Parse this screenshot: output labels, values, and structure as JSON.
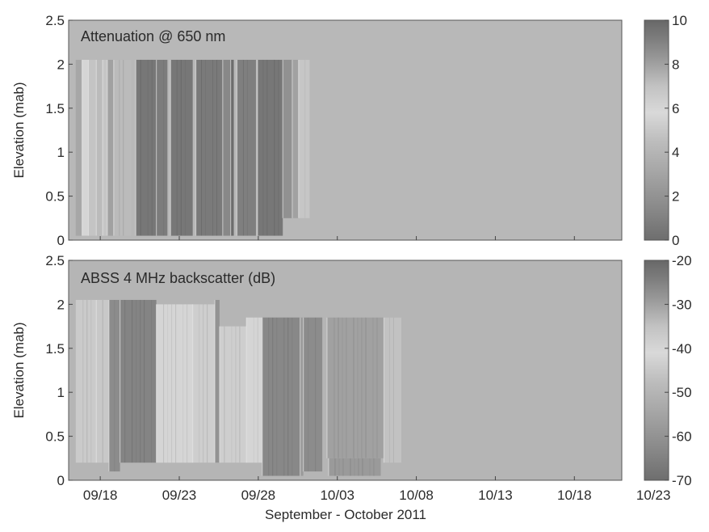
{
  "chart_data": [
    {
      "type": "heatmap",
      "title": "Attenuation @ 650 nm",
      "ylabel": "Elevation (mab)",
      "xlabel": "",
      "ylim": [
        0,
        2.5
      ],
      "yticks": [
        "0",
        "0.5",
        "1",
        "1.5",
        "2",
        "2.5"
      ],
      "xticks": [],
      "background_value": 4.2,
      "colorbar": {
        "min": 0,
        "max": 10,
        "ticks": [
          "0",
          "2",
          "4",
          "6",
          "8",
          "10"
        ]
      },
      "blocks": [
        {
          "x0": 0.2,
          "x1": 0.6,
          "y0": 0.05,
          "y1": 2.05,
          "value": 7.8
        },
        {
          "x0": 0.6,
          "x1": 1.0,
          "y0": 0.05,
          "y1": 2.05,
          "value": 5.6
        },
        {
          "x0": 1.0,
          "x1": 1.5,
          "y0": 0.05,
          "y1": 2.05,
          "value": 6.9
        },
        {
          "x0": 1.5,
          "x1": 1.9,
          "y0": 0.05,
          "y1": 2.05,
          "value": 7.2
        },
        {
          "x0": 1.9,
          "x1": 2.2,
          "y0": 0.05,
          "y1": 2.05,
          "value": 4.9
        },
        {
          "x0": 2.2,
          "x1": 2.6,
          "y0": 0.05,
          "y1": 2.05,
          "value": 8.0
        },
        {
          "x0": 2.6,
          "x1": 3.7,
          "y0": 0.05,
          "y1": 2.05,
          "value": 7.2
        },
        {
          "x0": 4.0,
          "x1": 5.3,
          "y0": 0.05,
          "y1": 2.05,
          "value": 9.4
        },
        {
          "x0": 5.3,
          "x1": 6.0,
          "y0": 0.05,
          "y1": 2.05,
          "value": 9.2
        },
        {
          "x0": 6.2,
          "x1": 7.6,
          "y0": 0.05,
          "y1": 2.05,
          "value": 9.4
        },
        {
          "x0": 7.8,
          "x1": 9.5,
          "y0": 0.05,
          "y1": 2.05,
          "value": 9.3
        },
        {
          "x0": 9.5,
          "x1": 10.0,
          "y0": 0.05,
          "y1": 2.05,
          "value": 8.8
        },
        {
          "x0": 10.0,
          "x1": 10.2,
          "y0": 0.05,
          "y1": 2.05,
          "value": 9.8
        },
        {
          "x0": 10.4,
          "x1": 11.6,
          "y0": 0.05,
          "y1": 2.05,
          "value": 9.1
        },
        {
          "x0": 11.7,
          "x1": 13.3,
          "y0": 0.05,
          "y1": 2.05,
          "value": 9.4
        },
        {
          "x0": 13.3,
          "x1": 13.9,
          "y0": 0.25,
          "y1": 2.05,
          "value": 8.5
        },
        {
          "x0": 13.9,
          "x1": 14.3,
          "y0": 0.25,
          "y1": 2.05,
          "value": 8.0
        },
        {
          "x0": 14.3,
          "x1": 15.0,
          "y0": 0.25,
          "y1": 2.05,
          "value": 6.8
        }
      ]
    },
    {
      "type": "heatmap",
      "title": "ABSS 4 MHz backscatter (dB)",
      "ylabel": "Elevation (mab)",
      "xlabel": "September - October 2011",
      "ylim": [
        0,
        2.5
      ],
      "yticks": [
        "0",
        "0.5",
        "1",
        "1.5",
        "2",
        "2.5"
      ],
      "xticks": [
        "09/18",
        "09/23",
        "09/28",
        "10/03",
        "10/08",
        "10/13",
        "10/18",
        "10/23"
      ],
      "background_value": -50,
      "colorbar": {
        "min": -70,
        "max": -20,
        "ticks": [
          "-20",
          "-30",
          "-40",
          "-50",
          "-60",
          "-70"
        ]
      },
      "blocks": [
        {
          "x0": 0.2,
          "x1": 1.5,
          "y0": 0.2,
          "y1": 2.05,
          "value": -37
        },
        {
          "x0": 1.5,
          "x1": 2.3,
          "y0": 0.2,
          "y1": 2.05,
          "value": -45
        },
        {
          "x0": 2.3,
          "x1": 3.0,
          "y0": 0.1,
          "y1": 2.05,
          "value": -62
        },
        {
          "x0": 3.0,
          "x1": 5.3,
          "y0": 0.2,
          "y1": 2.05,
          "value": -64
        },
        {
          "x0": 5.3,
          "x1": 7.6,
          "y0": 0.2,
          "y1": 2.0,
          "value": -40
        },
        {
          "x0": 7.6,
          "x1": 9.0,
          "y0": 0.2,
          "y1": 2.0,
          "value": -38
        },
        {
          "x0": 9.0,
          "x1": 9.3,
          "y0": 0.2,
          "y1": 2.05,
          "value": -60
        },
        {
          "x0": 9.3,
          "x1": 11.0,
          "y0": 0.2,
          "y1": 1.75,
          "value": -38
        },
        {
          "x0": 11.0,
          "x1": 12.0,
          "y0": 0.2,
          "y1": 1.85,
          "value": -42
        },
        {
          "x0": 12.0,
          "x1": 14.4,
          "y0": 0.05,
          "y1": 1.85,
          "value": -63
        },
        {
          "x0": 14.4,
          "x1": 14.6,
          "y0": 0.05,
          "y1": 1.85,
          "value": -58
        },
        {
          "x0": 14.6,
          "x1": 15.8,
          "y0": 0.1,
          "y1": 1.85,
          "value": -62
        },
        {
          "x0": 16.1,
          "x1": 19.7,
          "y0": 0.25,
          "y1": 1.85,
          "value": -30
        },
        {
          "x0": 16.2,
          "x1": 19.5,
          "y0": 0.05,
          "y1": 0.25,
          "value": -58
        },
        {
          "x0": 19.7,
          "x1": 20.8,
          "y0": 0.2,
          "y1": 1.85,
          "value": -35
        }
      ]
    }
  ]
}
